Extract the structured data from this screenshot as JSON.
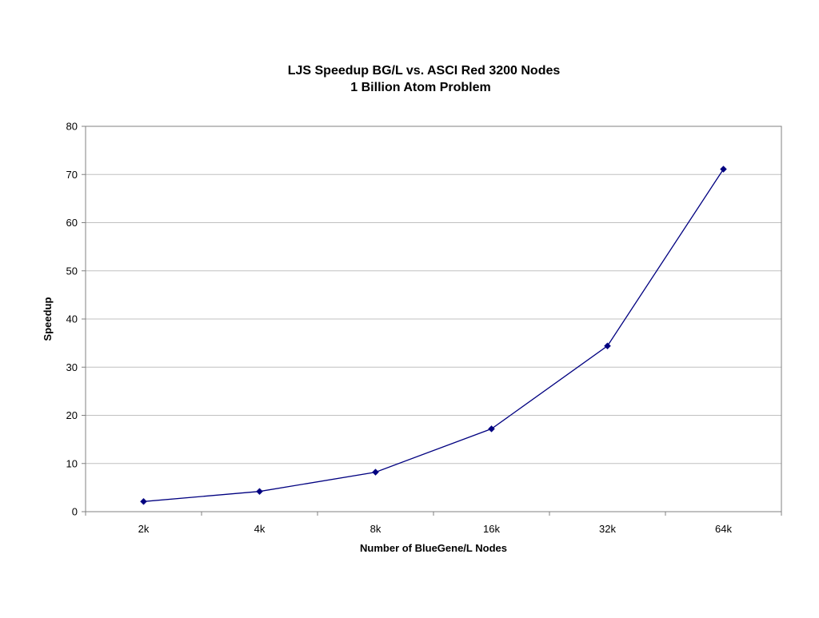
{
  "chart_data": {
    "type": "line",
    "title": "LJS Speedup BG/L vs. ASCI Red 3200 Nodes",
    "subtitle": "1 Billion Atom Problem",
    "xlabel": "Number of BlueGene/L Nodes",
    "ylabel": "Speedup",
    "categories": [
      "2k",
      "4k",
      "8k",
      "16k",
      "32k",
      "64k"
    ],
    "series": [
      {
        "values": [
          2.1,
          4.2,
          8.2,
          17.2,
          34.4,
          71.1
        ],
        "color": "#000080",
        "marker": "diamond"
      }
    ],
    "ylim": [
      0,
      80
    ],
    "yticks": [
      0,
      10,
      20,
      30,
      40,
      50,
      60,
      70,
      80
    ],
    "grid": true,
    "legend": "none"
  }
}
